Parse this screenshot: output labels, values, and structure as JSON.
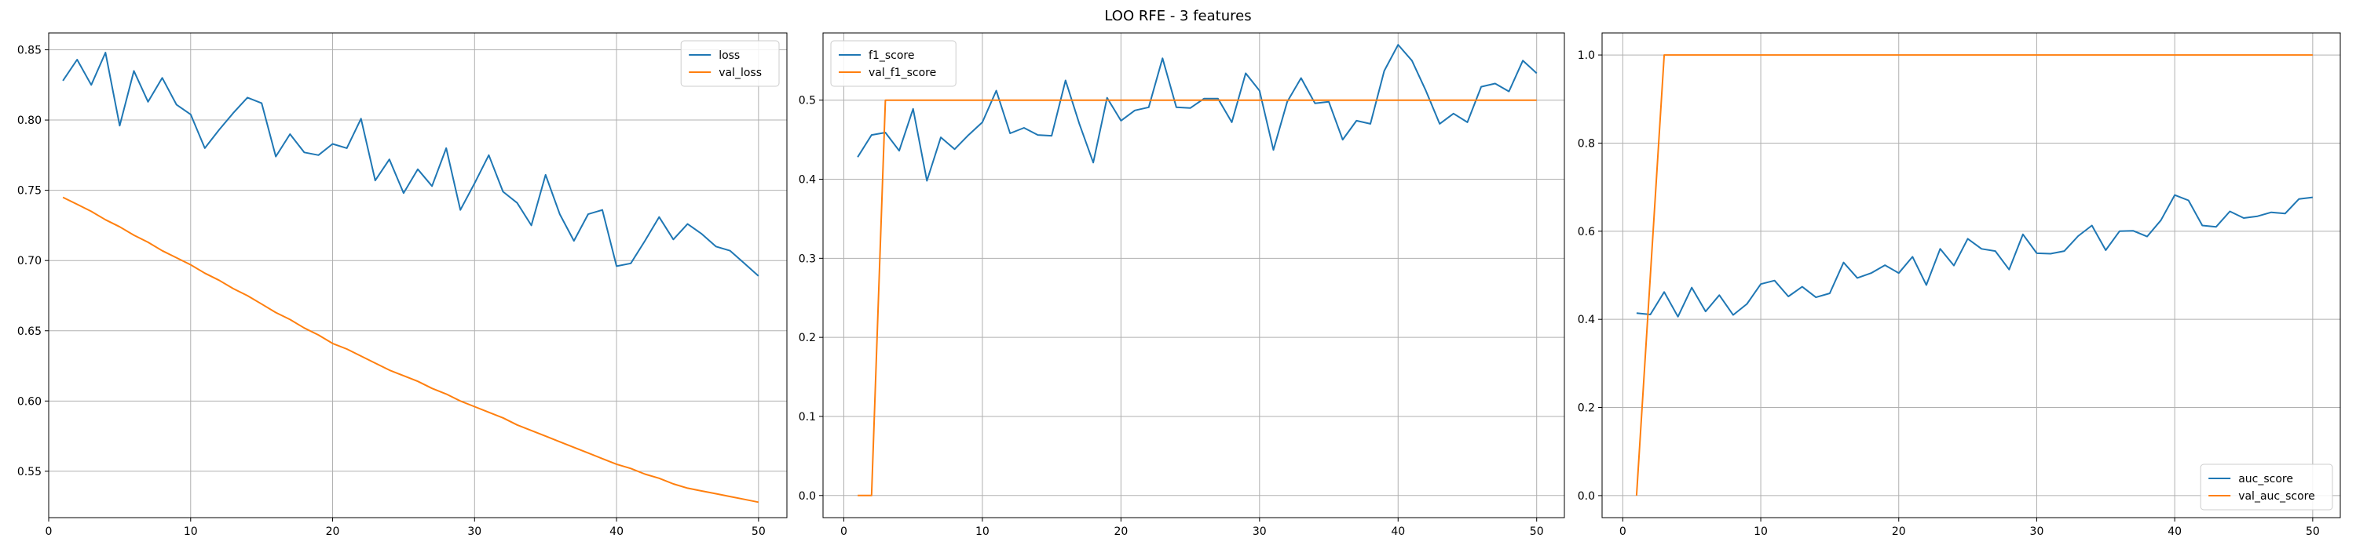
{
  "figure": {
    "title": "LOO RFE - 3 features"
  },
  "style": {
    "series_colors": [
      "#1f77b4",
      "#ff7f0e"
    ],
    "grid_color": "#b0b0b0"
  },
  "chart_data": [
    {
      "type": "line",
      "title": "",
      "xlabel": "",
      "ylabel": "",
      "xlim": [
        0,
        52
      ],
      "ylim": [
        0.517,
        0.862
      ],
      "xticks": [
        0,
        10,
        20,
        30,
        40,
        50
      ],
      "yticks": [
        0.55,
        0.6,
        0.65,
        0.7,
        0.75,
        0.8,
        0.85
      ],
      "grid": true,
      "legend": "top-right",
      "x": [
        1,
        2,
        3,
        4,
        5,
        6,
        7,
        8,
        9,
        10,
        11,
        12,
        13,
        14,
        15,
        16,
        17,
        18,
        19,
        20,
        21,
        22,
        23,
        24,
        25,
        26,
        27,
        28,
        29,
        30,
        31,
        32,
        33,
        34,
        35,
        36,
        37,
        38,
        39,
        40,
        41,
        42,
        43,
        44,
        45,
        46,
        47,
        48,
        49,
        50
      ],
      "series": [
        {
          "name": "loss",
          "values": [
            0.828,
            0.843,
            0.825,
            0.848,
            0.796,
            0.835,
            0.813,
            0.83,
            0.811,
            0.804,
            0.78,
            0.793,
            0.805,
            0.816,
            0.812,
            0.774,
            0.79,
            0.777,
            0.775,
            0.783,
            0.78,
            0.801,
            0.757,
            0.772,
            0.748,
            0.765,
            0.753,
            0.78,
            0.736,
            0.755,
            0.775,
            0.749,
            0.741,
            0.725,
            0.761,
            0.733,
            0.714,
            0.733,
            0.736,
            0.696,
            0.698,
            0.714,
            0.731,
            0.715,
            0.726,
            0.719,
            0.71,
            0.707,
            0.698,
            0.689
          ]
        },
        {
          "name": "val_loss",
          "values": [
            0.745,
            0.74,
            0.735,
            0.729,
            0.724,
            0.718,
            0.713,
            0.707,
            0.702,
            0.697,
            0.691,
            0.686,
            0.68,
            0.675,
            0.669,
            0.663,
            0.658,
            0.652,
            0.647,
            0.641,
            0.637,
            0.632,
            0.627,
            0.622,
            0.618,
            0.614,
            0.609,
            0.605,
            0.6,
            0.596,
            0.592,
            0.588,
            0.583,
            0.579,
            0.575,
            0.571,
            0.567,
            0.563,
            0.559,
            0.555,
            0.552,
            0.548,
            0.545,
            0.541,
            0.538,
            0.536,
            0.534,
            0.532,
            0.53,
            0.528
          ]
        }
      ]
    },
    {
      "type": "line",
      "title": "",
      "xlabel": "",
      "ylabel": "",
      "xlim": [
        -1.5,
        52
      ],
      "ylim": [
        -0.028,
        0.585
      ],
      "xticks": [
        0,
        10,
        20,
        30,
        40,
        50
      ],
      "yticks": [
        0.0,
        0.1,
        0.2,
        0.3,
        0.4,
        0.5
      ],
      "grid": true,
      "legend": "top-left",
      "x": [
        1,
        2,
        3,
        4,
        5,
        6,
        7,
        8,
        9,
        10,
        11,
        12,
        13,
        14,
        15,
        16,
        17,
        18,
        19,
        20,
        21,
        22,
        23,
        24,
        25,
        26,
        27,
        28,
        29,
        30,
        31,
        32,
        33,
        34,
        35,
        36,
        37,
        38,
        39,
        40,
        41,
        42,
        43,
        44,
        45,
        46,
        47,
        48,
        49,
        50
      ],
      "series": [
        {
          "name": "f1_score",
          "values": [
            0.428,
            0.456,
            0.459,
            0.436,
            0.489,
            0.398,
            0.453,
            0.438,
            0.456,
            0.472,
            0.512,
            0.458,
            0.465,
            0.456,
            0.455,
            0.525,
            0.47,
            0.421,
            0.503,
            0.474,
            0.487,
            0.491,
            0.553,
            0.491,
            0.49,
            0.502,
            0.502,
            0.472,
            0.534,
            0.512,
            0.437,
            0.498,
            0.528,
            0.496,
            0.498,
            0.45,
            0.474,
            0.47,
            0.537,
            0.57,
            0.55,
            0.512,
            0.47,
            0.483,
            0.472,
            0.517,
            0.521,
            0.511,
            0.55,
            0.534
          ]
        },
        {
          "name": "val_f1_score",
          "values": [
            0.0,
            0.0,
            0.5,
            0.5,
            0.5,
            0.5,
            0.5,
            0.5,
            0.5,
            0.5,
            0.5,
            0.5,
            0.5,
            0.5,
            0.5,
            0.5,
            0.5,
            0.5,
            0.5,
            0.5,
            0.5,
            0.5,
            0.5,
            0.5,
            0.5,
            0.5,
            0.5,
            0.5,
            0.5,
            0.5,
            0.5,
            0.5,
            0.5,
            0.5,
            0.5,
            0.5,
            0.5,
            0.5,
            0.5,
            0.5,
            0.5,
            0.5,
            0.5,
            0.5,
            0.5,
            0.5,
            0.5,
            0.5,
            0.5,
            0.5
          ]
        }
      ]
    },
    {
      "type": "line",
      "title": "",
      "xlabel": "",
      "ylabel": "",
      "xlim": [
        -1.5,
        52
      ],
      "ylim": [
        -0.05,
        1.05
      ],
      "xticks": [
        0,
        10,
        20,
        30,
        40,
        50
      ],
      "yticks": [
        0.0,
        0.2,
        0.4,
        0.6,
        0.8,
        1.0
      ],
      "grid": true,
      "legend": "bottom-right",
      "x": [
        1,
        2,
        3,
        4,
        5,
        6,
        7,
        8,
        9,
        10,
        11,
        12,
        13,
        14,
        15,
        16,
        17,
        18,
        19,
        20,
        21,
        22,
        23,
        24,
        25,
        26,
        27,
        28,
        29,
        30,
        31,
        32,
        33,
        34,
        35,
        36,
        37,
        38,
        39,
        40,
        41,
        42,
        43,
        44,
        45,
        46,
        47,
        48,
        49,
        50
      ],
      "series": [
        {
          "name": "auc_score",
          "values": [
            0.414,
            0.411,
            0.462,
            0.406,
            0.472,
            0.418,
            0.455,
            0.41,
            0.435,
            0.48,
            0.488,
            0.452,
            0.474,
            0.45,
            0.459,
            0.529,
            0.494,
            0.505,
            0.523,
            0.505,
            0.542,
            0.478,
            0.56,
            0.522,
            0.583,
            0.56,
            0.555,
            0.513,
            0.593,
            0.55,
            0.549,
            0.555,
            0.589,
            0.613,
            0.557,
            0.6,
            0.601,
            0.588,
            0.625,
            0.682,
            0.67,
            0.613,
            0.61,
            0.645,
            0.63,
            0.634,
            0.643,
            0.64,
            0.673,
            0.677
          ]
        },
        {
          "name": "val_auc_score",
          "values": [
            0.0,
            0.5,
            1.0,
            1.0,
            1.0,
            1.0,
            1.0,
            1.0,
            1.0,
            1.0,
            1.0,
            1.0,
            1.0,
            1.0,
            1.0,
            1.0,
            1.0,
            1.0,
            1.0,
            1.0,
            1.0,
            1.0,
            1.0,
            1.0,
            1.0,
            1.0,
            1.0,
            1.0,
            1.0,
            1.0,
            1.0,
            1.0,
            1.0,
            1.0,
            1.0,
            1.0,
            1.0,
            1.0,
            1.0,
            1.0,
            1.0,
            1.0,
            1.0,
            1.0,
            1.0,
            1.0,
            1.0,
            1.0,
            1.0,
            1.0
          ]
        }
      ]
    }
  ]
}
